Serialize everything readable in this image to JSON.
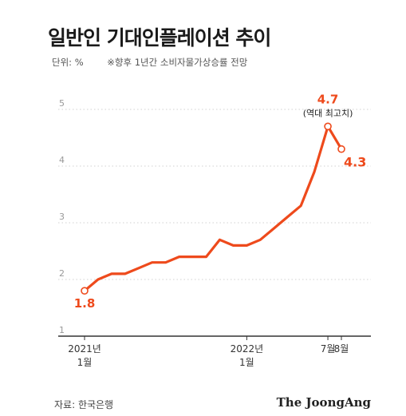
{
  "title": "일반인 기대인플레이션 추이",
  "unit": "단위: %",
  "note": "※향후 1년간 소비자물가상승률 전망",
  "source": "자료: 한국은행",
  "brand": "The JoongAng",
  "colors": {
    "line": "#ee4a1c",
    "grid": "#d0d0d0",
    "axis": "#333333",
    "tick_text": "#999999"
  },
  "chart_data": {
    "type": "line",
    "title": "일반인 기대인플레이션 추이",
    "xlabel": "",
    "ylabel": "",
    "ylim": [
      1,
      5
    ],
    "yticks": [
      1,
      2,
      3,
      4,
      5
    ],
    "grid": true,
    "x": [
      "2021-01",
      "2021-02",
      "2021-03",
      "2021-04",
      "2021-05",
      "2021-06",
      "2021-07",
      "2021-08",
      "2021-09",
      "2021-10",
      "2021-11",
      "2021-12",
      "2022-01",
      "2022-02",
      "2022-03",
      "2022-04",
      "2022-05",
      "2022-06",
      "2022-07",
      "2022-08"
    ],
    "series": [
      {
        "values": [
          1.8,
          2.0,
          2.1,
          2.1,
          2.2,
          2.3,
          2.3,
          2.4,
          2.4,
          2.4,
          2.7,
          2.6,
          2.6,
          2.7,
          2.9,
          3.1,
          3.3,
          3.9,
          4.7,
          4.3
        ]
      }
    ],
    "x_tick_labels": [
      {
        "x": "2021-01",
        "line1": "2021년",
        "line2": "1월"
      },
      {
        "x": "2022-01",
        "line1": "2022년",
        "line2": "1월"
      },
      {
        "x": "2022-07",
        "line1": "7월",
        "line2": ""
      },
      {
        "x": "2022-08",
        "line1": "8월",
        "line2": ""
      }
    ],
    "annotations": [
      {
        "x": "2021-01",
        "label": "1.8"
      },
      {
        "x": "2022-07",
        "label": "4.7",
        "sub": "(역대 최고치)"
      },
      {
        "x": "2022-08",
        "label": "4.3"
      }
    ]
  }
}
